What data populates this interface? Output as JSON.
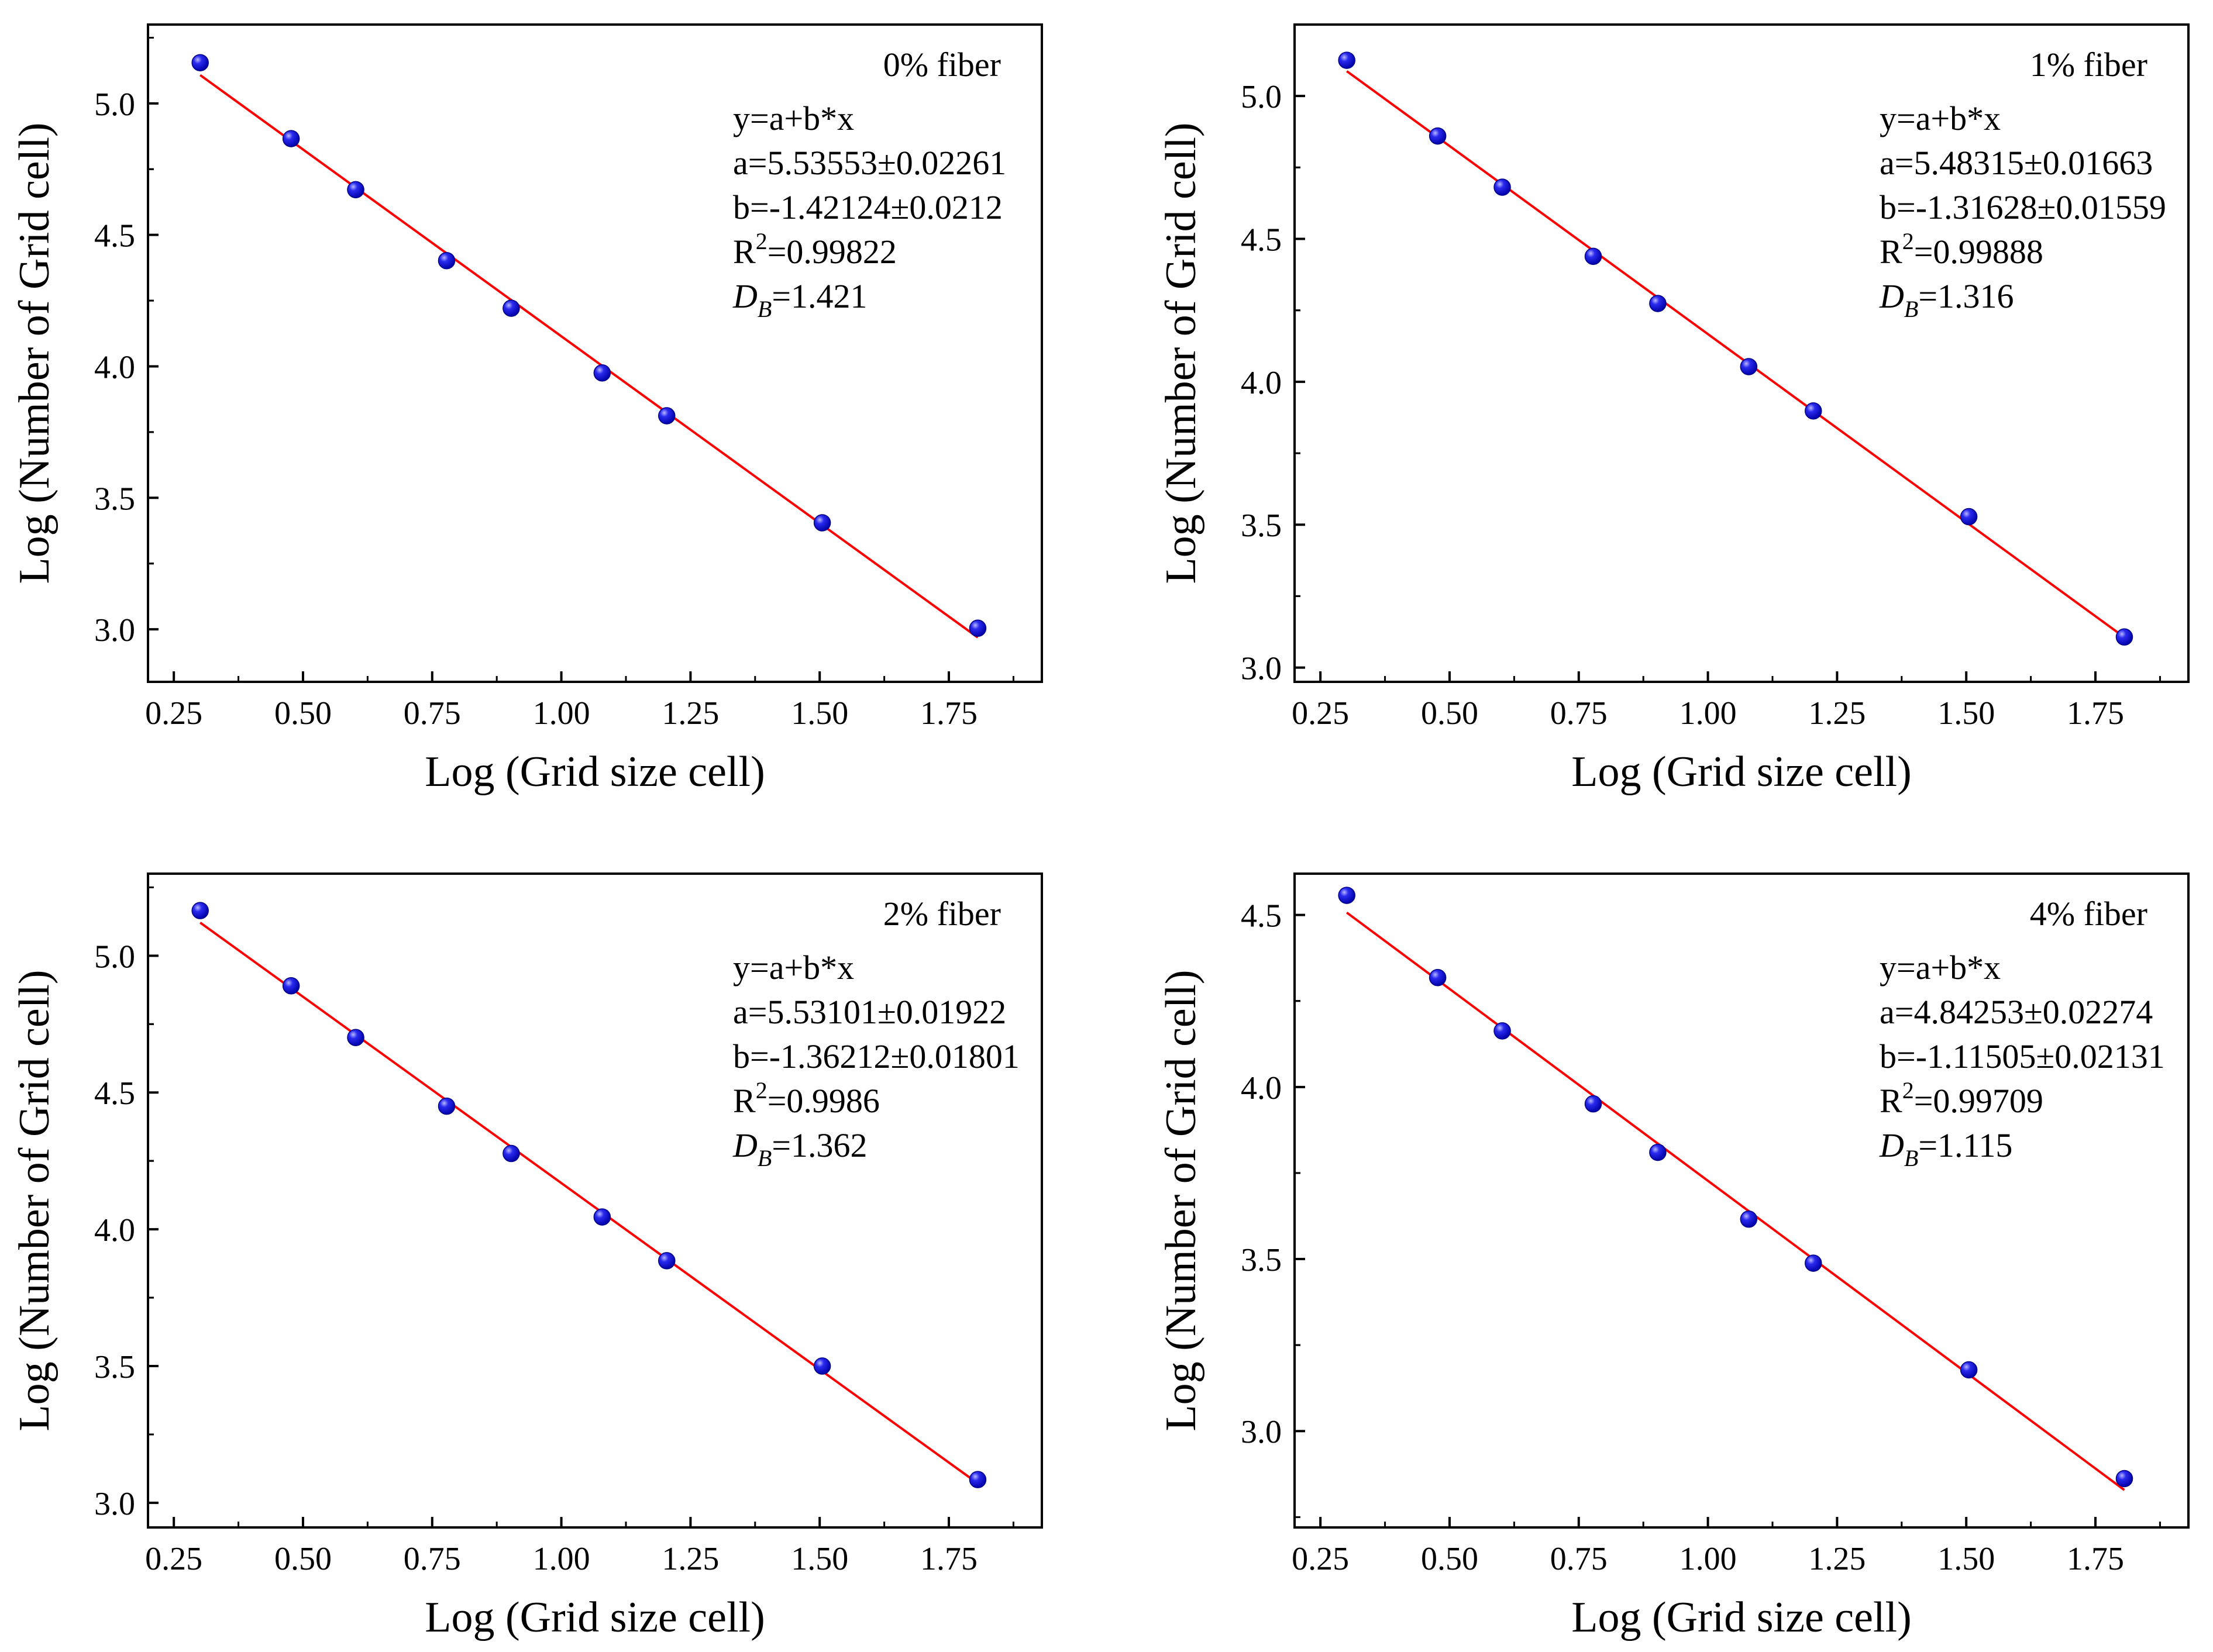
{
  "figure": {
    "xlabel": "Log (Grid size cell)",
    "ylabel": "Log (Number of Grid cell)",
    "point_color": "#1010dd",
    "line_color": "#ff0000"
  },
  "chart_data": [
    {
      "type": "scatter",
      "title": "0% fiber",
      "xlabel": "Log (Grid size cell)",
      "ylabel": "Log (Number of Grid cell)",
      "xlim": [
        0.2,
        1.93
      ],
      "ylim": [
        2.8,
        5.3
      ],
      "xticks": [
        0.25,
        0.5,
        0.75,
        1.0,
        1.25,
        1.5,
        1.75
      ],
      "xtick_labels": [
        "0.25",
        "0.50",
        "0.75",
        "1.00",
        "1.25",
        "1.50",
        "1.75"
      ],
      "yticks": [
        3.0,
        3.5,
        4.0,
        4.5,
        5.0
      ],
      "ytick_labels": [
        "3.0",
        "3.5",
        "4.0",
        "4.5",
        "5.0"
      ],
      "x": [
        0.301,
        0.477,
        0.602,
        0.778,
        0.903,
        1.079,
        1.204,
        1.505,
        1.806
      ],
      "y": [
        5.155,
        4.866,
        4.672,
        4.402,
        4.221,
        3.975,
        3.812,
        3.405,
        3.004
      ],
      "fit": {
        "a": 5.53553,
        "b": -1.42124
      },
      "annotations": {
        "equation": "y=a+b*x",
        "a_text": "a=5.53553±0.02261",
        "b_text": "b=-1.42124±0.0212",
        "r2_prefix": "R",
        "r2_sup": "2",
        "r2_value": "=0.99822",
        "db_symbol": "D",
        "db_sub": "B",
        "db_value": "=1.421"
      }
    },
    {
      "type": "scatter",
      "title": "1% fiber",
      "xlabel": "Log (Grid size cell)",
      "ylabel": "Log (Number of Grid cell)",
      "xlim": [
        0.2,
        1.93
      ],
      "ylim": [
        2.95,
        5.25
      ],
      "xticks": [
        0.25,
        0.5,
        0.75,
        1.0,
        1.25,
        1.5,
        1.75
      ],
      "xtick_labels": [
        "0.25",
        "0.50",
        "0.75",
        "1.00",
        "1.25",
        "1.50",
        "1.75"
      ],
      "yticks": [
        3.0,
        3.5,
        4.0,
        4.5,
        5.0
      ],
      "ytick_labels": [
        "3.0",
        "3.5",
        "4.0",
        "4.5",
        "5.0"
      ],
      "x": [
        0.301,
        0.477,
        0.602,
        0.778,
        0.903,
        1.079,
        1.204,
        1.505,
        1.806
      ],
      "y": [
        5.125,
        4.86,
        4.681,
        4.439,
        4.274,
        4.053,
        3.898,
        3.528,
        3.107
      ],
      "fit": {
        "a": 5.48315,
        "b": -1.31628
      },
      "annotations": {
        "equation": "y=a+b*x",
        "a_text": "a=5.48315±0.01663",
        "b_text": "b=-1.31628±0.01559",
        "r2_prefix": "R",
        "r2_sup": "2",
        "r2_value": "=0.99888",
        "db_symbol": "D",
        "db_sub": "B",
        "db_value": "=1.316"
      }
    },
    {
      "type": "scatter",
      "title": "2% fiber",
      "xlabel": "Log (Grid size cell)",
      "ylabel": "Log (Number of Grid cell)",
      "xlim": [
        0.2,
        1.93
      ],
      "ylim": [
        2.91,
        5.3
      ],
      "xticks": [
        0.25,
        0.5,
        0.75,
        1.0,
        1.25,
        1.5,
        1.75
      ],
      "xtick_labels": [
        "0.25",
        "0.50",
        "0.75",
        "1.00",
        "1.25",
        "1.50",
        "1.75"
      ],
      "yticks": [
        3.0,
        3.5,
        4.0,
        4.5,
        5.0
      ],
      "ytick_labels": [
        "3.0",
        "3.5",
        "4.0",
        "4.5",
        "5.0"
      ],
      "x": [
        0.301,
        0.477,
        0.602,
        0.778,
        0.903,
        1.079,
        1.204,
        1.505,
        1.806
      ],
      "y": [
        5.165,
        4.89,
        4.701,
        4.45,
        4.277,
        4.045,
        3.885,
        3.5,
        3.085
      ],
      "fit": {
        "a": 5.53101,
        "b": -1.36212
      },
      "annotations": {
        "equation": "y=a+b*x",
        "a_text": "a=5.53101±0.01922",
        "b_text": "b=-1.36212±0.01801",
        "r2_prefix": "R",
        "r2_sup": "2",
        "r2_value": "=0.9986",
        "db_symbol": "D",
        "db_sub": "B",
        "db_value": "=1.362"
      }
    },
    {
      "type": "scatter",
      "title": "4% fiber",
      "xlabel": "Log (Grid size cell)",
      "ylabel": "Log (Number of Grid cell)",
      "xlim": [
        0.2,
        1.93
      ],
      "ylim": [
        2.72,
        4.62
      ],
      "xticks": [
        0.25,
        0.5,
        0.75,
        1.0,
        1.25,
        1.5,
        1.75
      ],
      "xtick_labels": [
        "0.25",
        "0.50",
        "0.75",
        "1.00",
        "1.25",
        "1.50",
        "1.75"
      ],
      "yticks": [
        3.0,
        3.5,
        4.0,
        4.5
      ],
      "ytick_labels": [
        "3.0",
        "3.5",
        "4.0",
        "4.5"
      ],
      "x": [
        0.301,
        0.477,
        0.602,
        0.778,
        0.903,
        1.079,
        1.204,
        1.505,
        1.806
      ],
      "y": [
        4.557,
        4.318,
        4.163,
        3.951,
        3.81,
        3.616,
        3.488,
        3.178,
        2.862
      ],
      "fit": {
        "a": 4.84253,
        "b": -1.11505
      },
      "annotations": {
        "equation": "y=a+b*x",
        "a_text": "a=4.84253±0.02274",
        "b_text": "b=-1.11505±0.02131",
        "r2_prefix": "R",
        "r2_sup": "2",
        "r2_value": "=0.99709",
        "db_symbol": "D",
        "db_sub": "B",
        "db_value": "=1.115"
      }
    }
  ]
}
